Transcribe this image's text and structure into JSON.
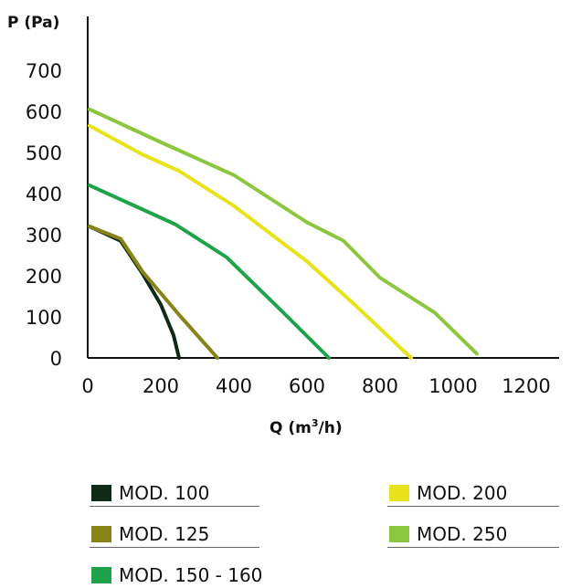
{
  "chart_data": {
    "type": "line",
    "ylabel": "P (Pa)",
    "xlabel_main": "Q (m",
    "xlabel_sup": "3",
    "xlabel_end": "/h)",
    "xlim": [
      0,
      1300
    ],
    "ylim": [
      0,
      800
    ],
    "x_ticks": [
      0,
      200,
      400,
      600,
      800,
      1000,
      1200
    ],
    "y_ticks": [
      0,
      100,
      200,
      300,
      400,
      500,
      600,
      700
    ],
    "grid": false,
    "legend_position": "bottom",
    "series": [
      {
        "name": "MOD. 100",
        "color": "#0f2a16",
        "points": [
          [
            5,
            320
          ],
          [
            90,
            285
          ],
          [
            150,
            205
          ],
          [
            200,
            130
          ],
          [
            235,
            55
          ],
          [
            250,
            0
          ]
        ]
      },
      {
        "name": "MOD. 125",
        "color": "#868418",
        "points": [
          [
            5,
            320
          ],
          [
            90,
            290
          ],
          [
            150,
            210
          ],
          [
            250,
            105
          ],
          [
            300,
            55
          ],
          [
            355,
            0
          ]
        ]
      },
      {
        "name": "MOD. 150 - 160",
        "color": "#1ea34a",
        "points": [
          [
            5,
            420
          ],
          [
            240,
            325
          ],
          [
            380,
            245
          ],
          [
            530,
            115
          ],
          [
            660,
            0
          ]
        ]
      },
      {
        "name": "MOD. 200",
        "color": "#e8e21a",
        "points": [
          [
            5,
            565
          ],
          [
            150,
            495
          ],
          [
            250,
            455
          ],
          [
            400,
            370
          ],
          [
            600,
            235
          ],
          [
            730,
            130
          ],
          [
            885,
            0
          ]
        ]
      },
      {
        "name": "MOD. 250",
        "color": "#8cc63f",
        "points": [
          [
            5,
            605
          ],
          [
            200,
            525
          ],
          [
            400,
            445
          ],
          [
            600,
            330
          ],
          [
            700,
            285
          ],
          [
            800,
            195
          ],
          [
            950,
            110
          ],
          [
            1065,
            10
          ]
        ]
      }
    ]
  }
}
